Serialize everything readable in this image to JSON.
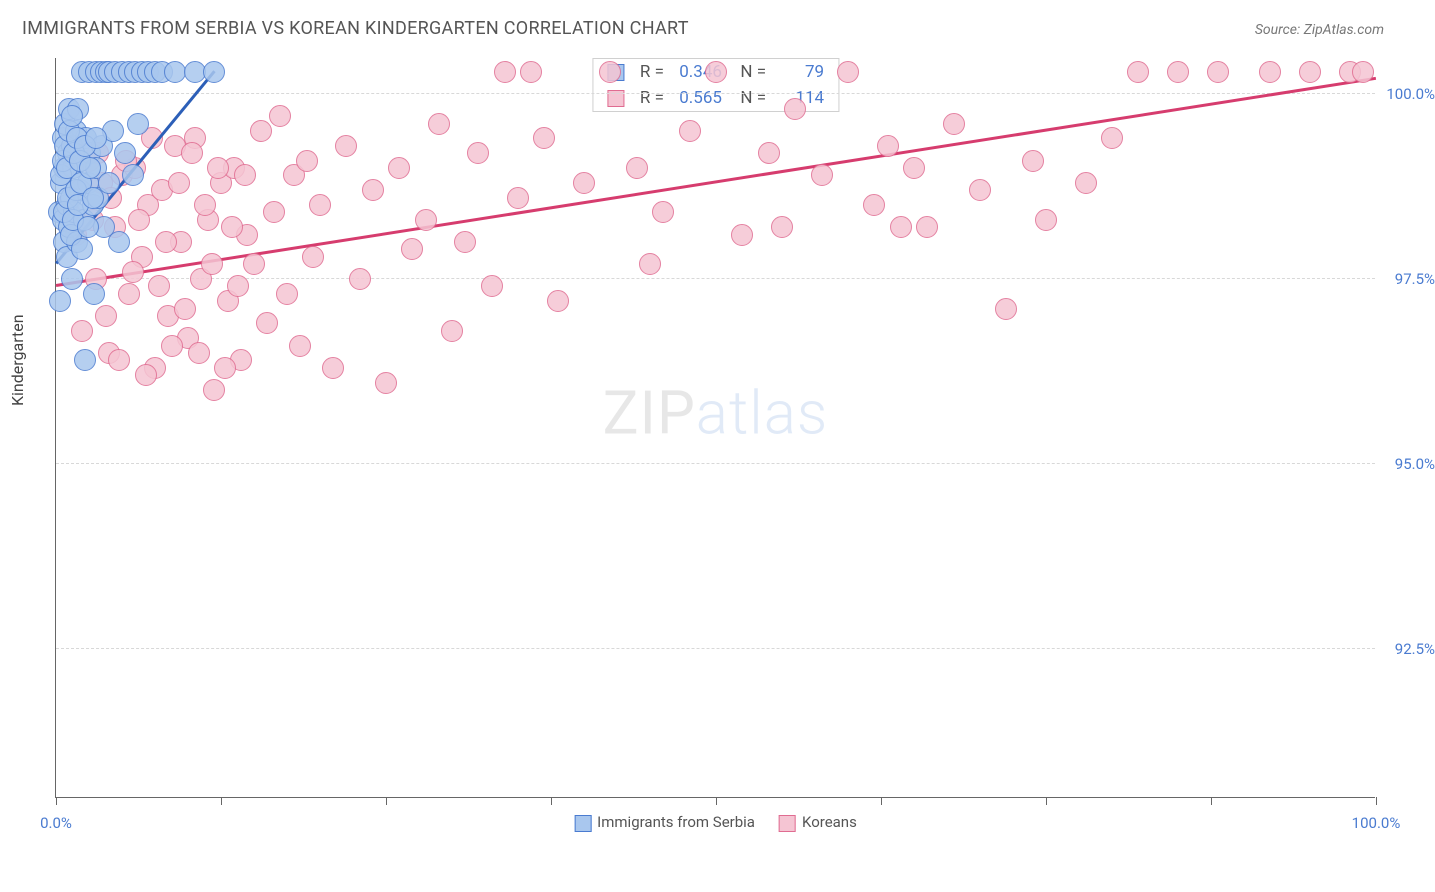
{
  "header": {
    "title": "IMMIGRANTS FROM SERBIA VS KOREAN KINDERGARTEN CORRELATION CHART",
    "source": "Source: ZipAtlas.com"
  },
  "chart": {
    "type": "scatter",
    "ylabel": "Kindergarten",
    "watermark_bold": "ZIP",
    "watermark_thin": "atlas",
    "background_color": "#ffffff",
    "grid_color": "#d8d8d8",
    "axis_color": "#666666",
    "label_color": "#4a7bd0",
    "marker_radius": 11,
    "marker_fill_opacity": 0.28,
    "marker_stroke_width": 1.2,
    "xlim": [
      0,
      100
    ],
    "ylim": [
      90.5,
      100.5
    ],
    "x_ticks": [
      0,
      12.5,
      25,
      37.5,
      50,
      62.5,
      75,
      87.5,
      100
    ],
    "x_tick_labels": {
      "0": "0.0%",
      "100": "100.0%"
    },
    "y_gridlines": [
      92.5,
      95.0,
      97.5,
      100.0
    ],
    "y_tick_labels": {
      "92.5": "92.5%",
      "95.0": "95.0%",
      "97.5": "97.5%",
      "100.0": "100.0%"
    },
    "series": [
      {
        "name": "Immigrants from Serbia",
        "color_fill": "#a9c7ee",
        "color_stroke": "#4a7bd0",
        "trend_color": "#2c5fb8",
        "r": "0.346",
        "n": "79",
        "trend": {
          "x1": 0,
          "y1": 97.7,
          "x2": 12,
          "y2": 100.3
        },
        "points": [
          [
            0.2,
            98.4
          ],
          [
            0.3,
            97.2
          ],
          [
            0.4,
            98.8
          ],
          [
            0.5,
            99.4
          ],
          [
            0.5,
            98.3
          ],
          [
            0.6,
            98.0
          ],
          [
            0.6,
            99.0
          ],
          [
            0.7,
            99.6
          ],
          [
            0.8,
            98.5
          ],
          [
            0.8,
            97.8
          ],
          [
            0.9,
            99.2
          ],
          [
            1.0,
            98.2
          ],
          [
            1.0,
            99.8
          ],
          [
            1.1,
            98.6
          ],
          [
            1.2,
            99.3
          ],
          [
            1.2,
            97.5
          ],
          [
            1.3,
            99.0
          ],
          [
            1.4,
            98.4
          ],
          [
            1.5,
            99.5
          ],
          [
            1.6,
            98.0
          ],
          [
            1.7,
            99.8
          ],
          [
            1.8,
            98.7
          ],
          [
            1.9,
            99.1
          ],
          [
            2.0,
            100.3
          ],
          [
            2.1,
            98.3
          ],
          [
            2.2,
            96.4
          ],
          [
            2.3,
            99.4
          ],
          [
            2.4,
            98.8
          ],
          [
            2.5,
            100.3
          ],
          [
            2.6,
            99.2
          ],
          [
            2.8,
            98.5
          ],
          [
            2.9,
            97.3
          ],
          [
            3.0,
            100.3
          ],
          [
            3.0,
            99.0
          ],
          [
            3.2,
            98.6
          ],
          [
            3.4,
            100.3
          ],
          [
            3.5,
            99.3
          ],
          [
            3.6,
            98.2
          ],
          [
            3.8,
            100.3
          ],
          [
            4.0,
            98.8
          ],
          [
            4.0,
            100.3
          ],
          [
            4.3,
            99.5
          ],
          [
            4.5,
            100.3
          ],
          [
            4.8,
            98.0
          ],
          [
            5.0,
            100.3
          ],
          [
            5.2,
            99.2
          ],
          [
            5.5,
            100.3
          ],
          [
            5.8,
            98.9
          ],
          [
            6.0,
            100.3
          ],
          [
            6.2,
            99.6
          ],
          [
            6.5,
            100.3
          ],
          [
            7.0,
            100.3
          ],
          [
            7.5,
            100.3
          ],
          [
            8.0,
            100.3
          ],
          [
            9.0,
            100.3
          ],
          [
            10.5,
            100.3
          ],
          [
            12.0,
            100.3
          ],
          [
            0.4,
            98.9
          ],
          [
            0.5,
            99.1
          ],
          [
            0.6,
            98.4
          ],
          [
            0.7,
            99.3
          ],
          [
            0.8,
            99.0
          ],
          [
            0.9,
            98.6
          ],
          [
            1.0,
            99.5
          ],
          [
            1.1,
            98.1
          ],
          [
            1.2,
            99.7
          ],
          [
            1.3,
            98.3
          ],
          [
            1.4,
            99.2
          ],
          [
            1.5,
            98.7
          ],
          [
            1.6,
            99.4
          ],
          [
            1.7,
            98.5
          ],
          [
            1.8,
            99.1
          ],
          [
            1.9,
            98.8
          ],
          [
            2.0,
            97.9
          ],
          [
            2.2,
            99.3
          ],
          [
            2.4,
            98.2
          ],
          [
            2.6,
            99.0
          ],
          [
            2.8,
            98.6
          ],
          [
            3.0,
            99.4
          ]
        ]
      },
      {
        "name": "Koreans",
        "color_fill": "#f5c5d3",
        "color_stroke": "#e06c91",
        "trend_color": "#d63c6e",
        "r": "0.565",
        "n": "114",
        "trend": {
          "x1": 0,
          "y1": 97.4,
          "x2": 100,
          "y2": 100.2
        },
        "points": [
          [
            1.0,
            98.4
          ],
          [
            1.5,
            98.1
          ],
          [
            2.0,
            96.8
          ],
          [
            2.5,
            99.1
          ],
          [
            3.0,
            97.5
          ],
          [
            3.5,
            98.8
          ],
          [
            4.0,
            96.5
          ],
          [
            4.5,
            98.2
          ],
          [
            5.0,
            98.9
          ],
          [
            5.5,
            97.3
          ],
          [
            6.0,
            99.0
          ],
          [
            6.5,
            97.8
          ],
          [
            7.0,
            98.5
          ],
          [
            7.5,
            96.3
          ],
          [
            8.0,
            98.7
          ],
          [
            8.5,
            97.0
          ],
          [
            9.0,
            99.3
          ],
          [
            9.5,
            98.0
          ],
          [
            10.0,
            96.7
          ],
          [
            10.5,
            99.4
          ],
          [
            11.0,
            97.5
          ],
          [
            11.5,
            98.3
          ],
          [
            12.0,
            96.0
          ],
          [
            12.5,
            98.8
          ],
          [
            13.0,
            97.2
          ],
          [
            13.5,
            99.0
          ],
          [
            14.0,
            96.4
          ],
          [
            14.5,
            98.1
          ],
          [
            15.0,
            97.7
          ],
          [
            15.5,
            99.5
          ],
          [
            16.0,
            96.9
          ],
          [
            16.5,
            98.4
          ],
          [
            17.0,
            99.7
          ],
          [
            17.5,
            97.3
          ],
          [
            18.0,
            98.9
          ],
          [
            18.5,
            96.6
          ],
          [
            19.0,
            99.1
          ],
          [
            19.5,
            97.8
          ],
          [
            20.0,
            98.5
          ],
          [
            21.0,
            96.3
          ],
          [
            22.0,
            99.3
          ],
          [
            23.0,
            97.5
          ],
          [
            24.0,
            98.7
          ],
          [
            25.0,
            96.1
          ],
          [
            26.0,
            99.0
          ],
          [
            27.0,
            97.9
          ],
          [
            28.0,
            98.3
          ],
          [
            29.0,
            99.6
          ],
          [
            30.0,
            96.8
          ],
          [
            31.0,
            98.0
          ],
          [
            32.0,
            99.2
          ],
          [
            33.0,
            97.4
          ],
          [
            34.0,
            100.3
          ],
          [
            35.0,
            98.6
          ],
          [
            36.0,
            100.3
          ],
          [
            37.0,
            99.4
          ],
          [
            38.0,
            97.2
          ],
          [
            40.0,
            98.8
          ],
          [
            42.0,
            100.3
          ],
          [
            44.0,
            99.0
          ],
          [
            45.0,
            97.7
          ],
          [
            46.0,
            98.4
          ],
          [
            48.0,
            99.5
          ],
          [
            50.0,
            100.3
          ],
          [
            52.0,
            98.1
          ],
          [
            54.0,
            99.2
          ],
          [
            55.0,
            98.2
          ],
          [
            56.0,
            99.8
          ],
          [
            58.0,
            98.9
          ],
          [
            60.0,
            100.3
          ],
          [
            62.0,
            98.5
          ],
          [
            63.0,
            99.3
          ],
          [
            64.0,
            98.2
          ],
          [
            65.0,
            99.0
          ],
          [
            66.0,
            98.2
          ],
          [
            68.0,
            99.6
          ],
          [
            70.0,
            98.7
          ],
          [
            72.0,
            97.1
          ],
          [
            74.0,
            99.1
          ],
          [
            75.0,
            98.3
          ],
          [
            78.0,
            98.8
          ],
          [
            80.0,
            99.4
          ],
          [
            82.0,
            100.3
          ],
          [
            85.0,
            100.3
          ],
          [
            88.0,
            100.3
          ],
          [
            92.0,
            100.3
          ],
          [
            95.0,
            100.3
          ],
          [
            98.0,
            100.3
          ],
          [
            99.0,
            100.3
          ],
          [
            2.8,
            98.3
          ],
          [
            3.2,
            99.2
          ],
          [
            3.8,
            97.0
          ],
          [
            4.2,
            98.6
          ],
          [
            4.8,
            96.4
          ],
          [
            5.3,
            99.1
          ],
          [
            5.8,
            97.6
          ],
          [
            6.3,
            98.3
          ],
          [
            6.8,
            96.2
          ],
          [
            7.3,
            99.4
          ],
          [
            7.8,
            97.4
          ],
          [
            8.3,
            98.0
          ],
          [
            8.8,
            96.6
          ],
          [
            9.3,
            98.8
          ],
          [
            9.8,
            97.1
          ],
          [
            10.3,
            99.2
          ],
          [
            10.8,
            96.5
          ],
          [
            11.3,
            98.5
          ],
          [
            11.8,
            97.7
          ],
          [
            12.3,
            99.0
          ],
          [
            12.8,
            96.3
          ],
          [
            13.3,
            98.2
          ],
          [
            13.8,
            97.4
          ],
          [
            14.3,
            98.9
          ]
        ]
      }
    ]
  }
}
